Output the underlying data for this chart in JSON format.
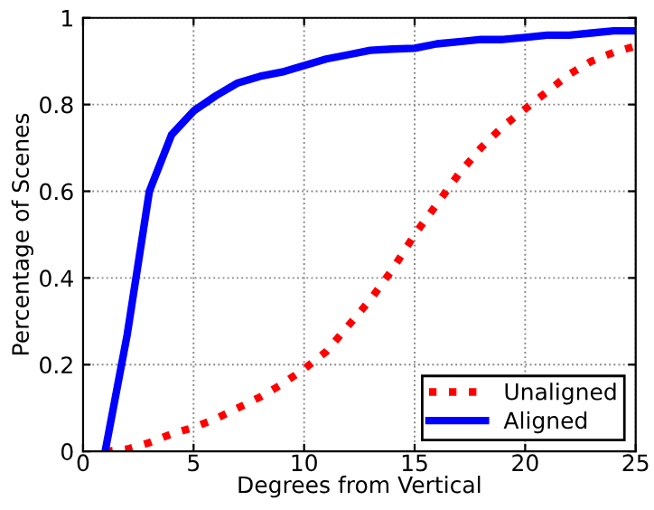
{
  "chart_data": {
    "type": "line",
    "xlabel": "Degrees from Vertical",
    "ylabel": "Percentage of Scenes",
    "x": [
      1,
      2,
      3,
      4,
      5,
      6,
      7,
      8,
      9,
      10,
      11,
      12,
      13,
      14,
      15,
      16,
      17,
      18,
      19,
      20,
      21,
      22,
      23,
      24,
      25
    ],
    "series": [
      {
        "name": "Unaligned",
        "color": "#ff0000",
        "line_style": "dotted",
        "values": [
          0,
          0.005,
          0.02,
          0.04,
          0.055,
          0.075,
          0.1,
          0.125,
          0.155,
          0.19,
          0.23,
          0.29,
          0.35,
          0.42,
          0.5,
          0.57,
          0.64,
          0.7,
          0.75,
          0.79,
          0.83,
          0.87,
          0.9,
          0.92,
          0.935
        ]
      },
      {
        "name": "Aligned",
        "color": "#0000ff",
        "line_style": "solid",
        "values": [
          0,
          0.27,
          0.6,
          0.73,
          0.785,
          0.82,
          0.85,
          0.865,
          0.875,
          0.89,
          0.905,
          0.915,
          0.925,
          0.928,
          0.93,
          0.94,
          0.945,
          0.95,
          0.95,
          0.955,
          0.96,
          0.96,
          0.965,
          0.97,
          0.97
        ]
      }
    ],
    "xlim": [
      0,
      25
    ],
    "xticks": [
      0,
      5,
      10,
      15,
      20,
      25
    ],
    "ylim": [
      0,
      1
    ],
    "yticks": [
      0,
      0.2,
      0.4,
      0.6,
      0.8,
      1
    ],
    "grid": true,
    "legend": "bottom right"
  }
}
